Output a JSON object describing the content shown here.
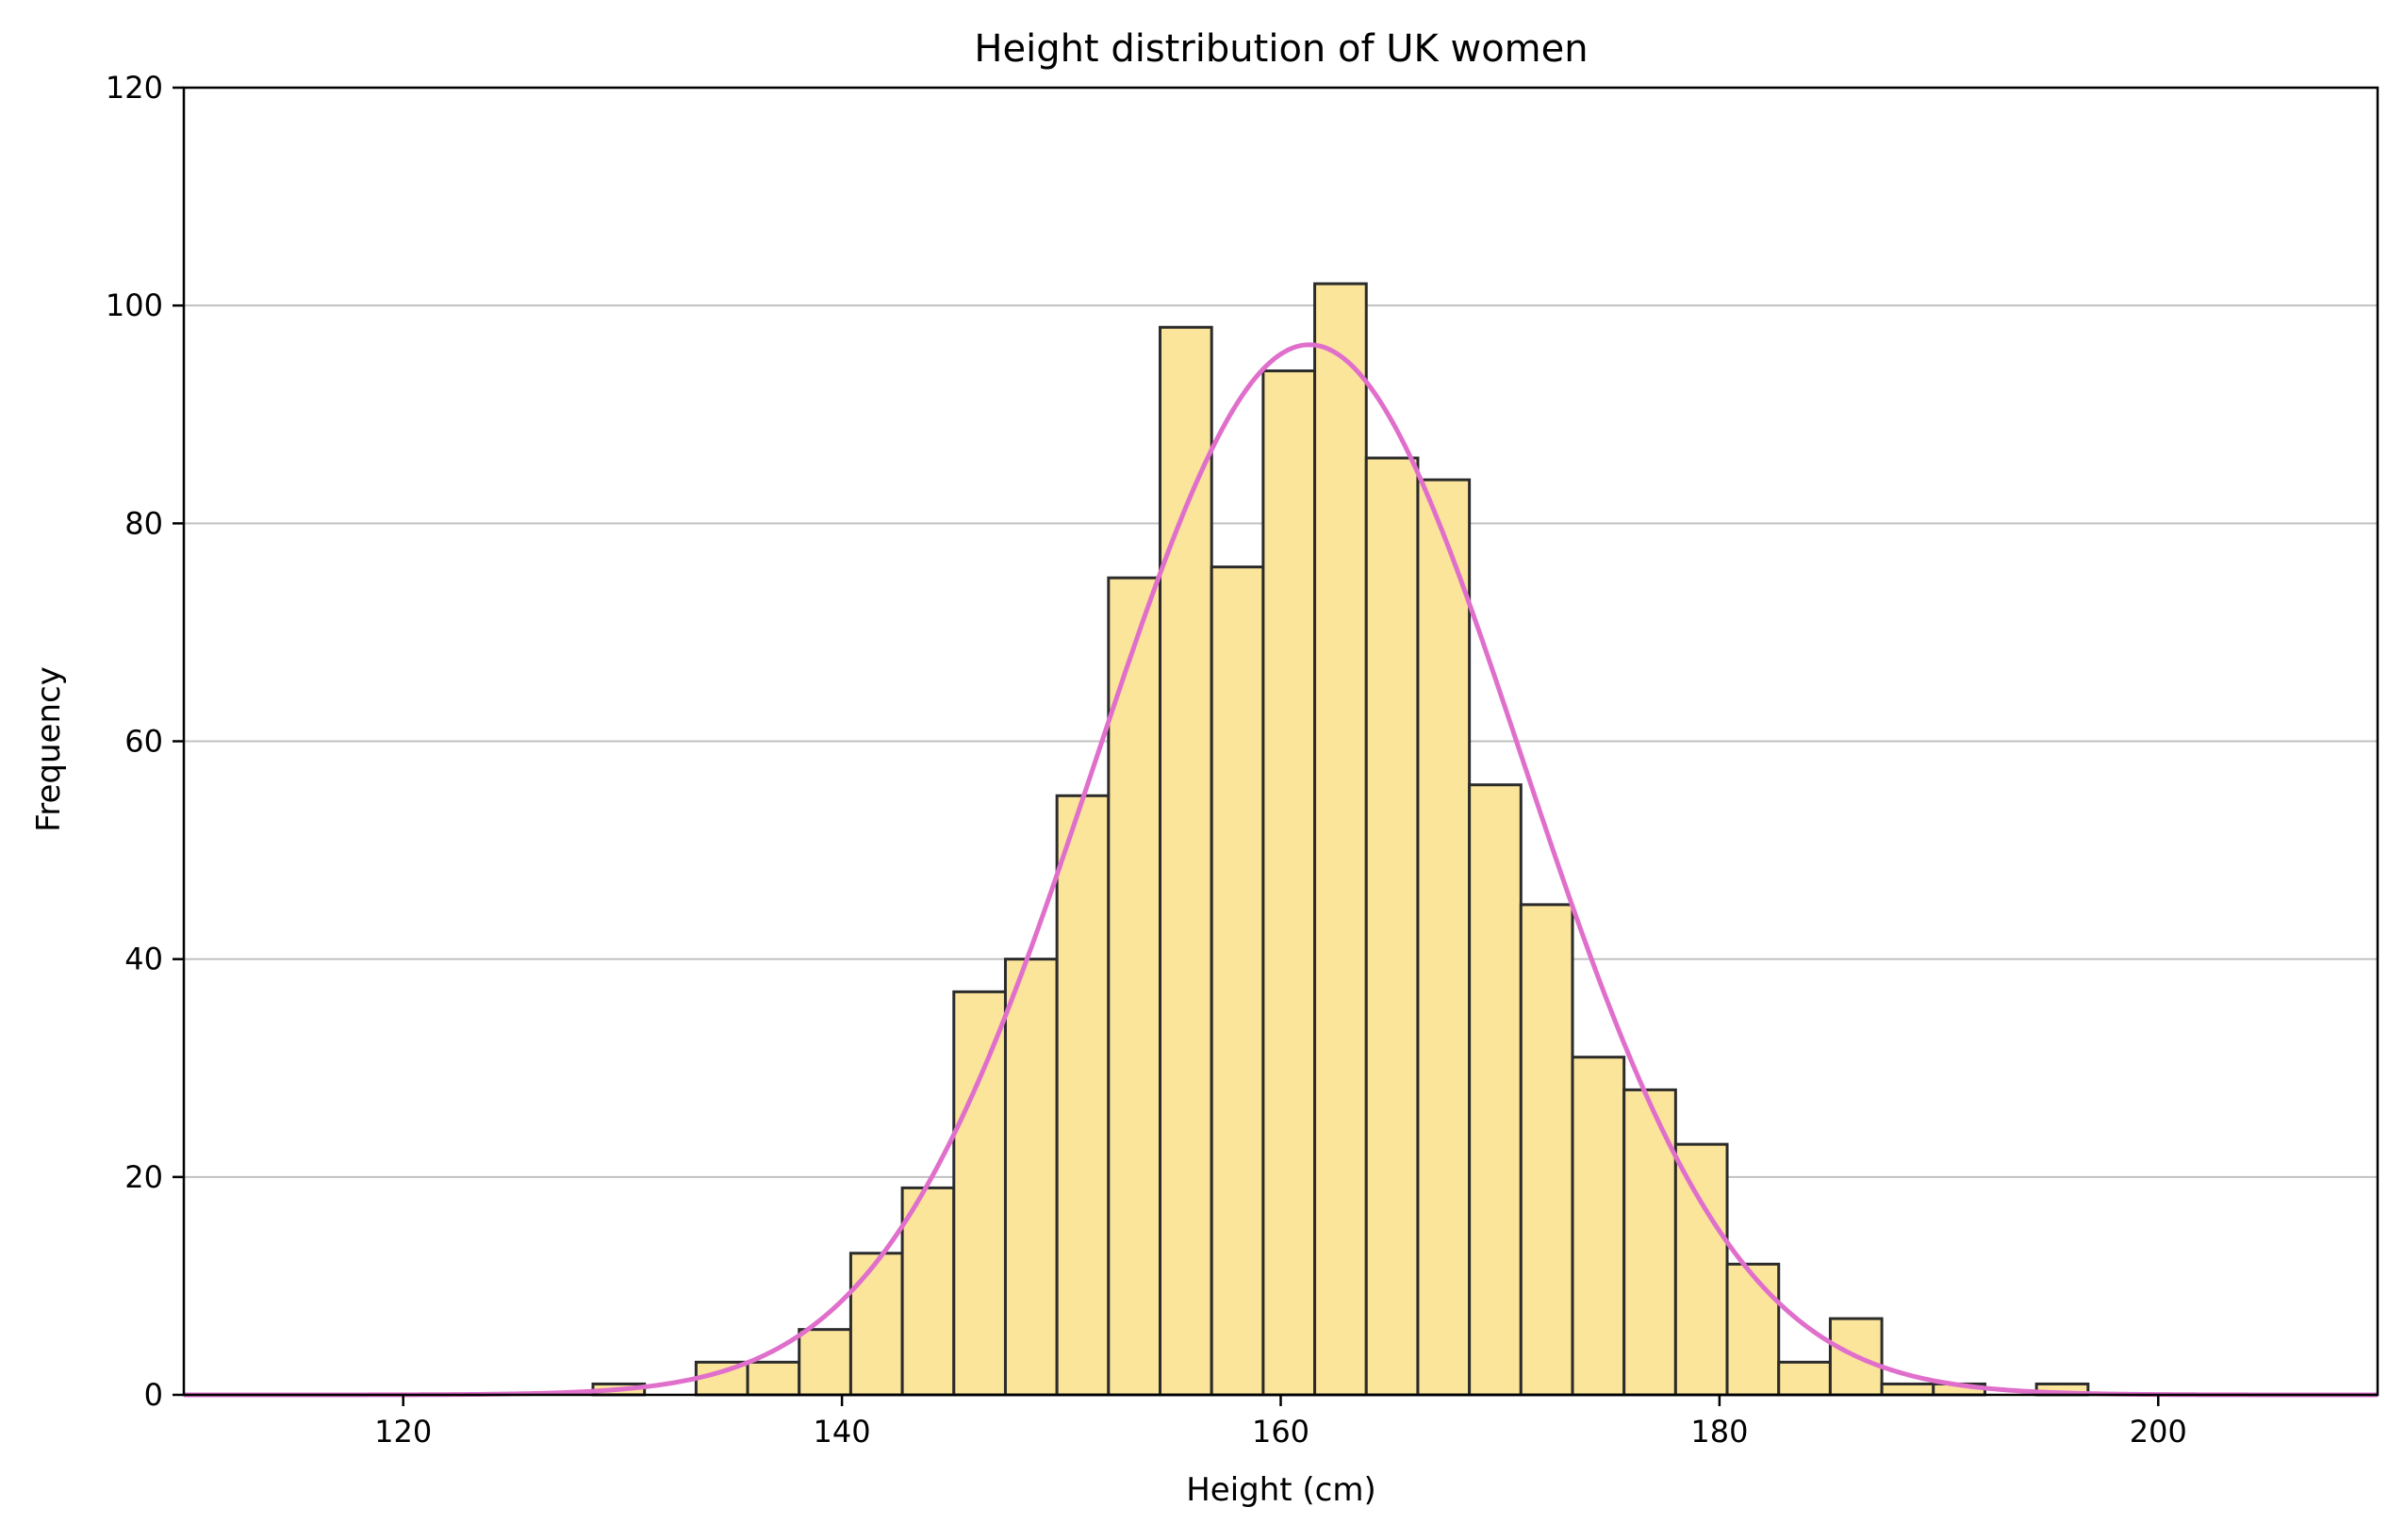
{
  "chart_data": {
    "type": "bar",
    "title": "Height distribution of UK women",
    "xlabel": "Height (cm)",
    "ylabel": "Frequency",
    "xlim": [
      110,
      210
    ],
    "ylim": [
      0,
      120
    ],
    "xticks": [
      120,
      140,
      160,
      180,
      200
    ],
    "yticks": [
      0,
      20,
      40,
      60,
      80,
      100,
      120
    ],
    "grid": "y-major",
    "bin_start": 128.65,
    "bin_width": 2.35,
    "values": [
      1,
      0,
      3,
      3,
      6,
      13,
      19,
      37,
      40,
      55,
      75,
      98,
      76,
      94,
      102,
      86,
      84,
      56,
      45,
      31,
      28,
      23,
      12,
      3,
      7,
      1,
      1,
      0,
      1
    ],
    "bar_color": "#fbe59b",
    "bar_edge_color": "#2b2b2b",
    "fit_curve": {
      "type": "normal",
      "mean": 161.3,
      "std": 9.7,
      "peak": 96.4,
      "color": "#e06fcc"
    }
  }
}
